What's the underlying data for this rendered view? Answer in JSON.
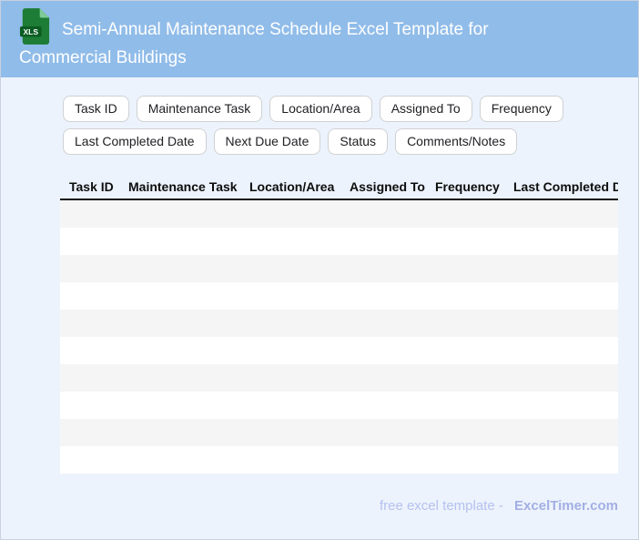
{
  "header": {
    "title": "Semi-Annual Maintenance Schedule Excel Template for Commercial Buildings",
    "file_icon_label": "XLS",
    "bg_color": "#90bce9"
  },
  "chips": [
    "Task ID",
    "Maintenance Task",
    "Location/Area",
    "Assigned To",
    "Frequency",
    "Last Completed Date",
    "Next Due Date",
    "Status",
    "Comments/Notes"
  ],
  "table": {
    "columns": [
      "Task ID",
      "Maintenance Task",
      "Location/Area",
      "Assigned To",
      "Frequency",
      "Last Completed Date"
    ],
    "empty_row_count": 10,
    "stripe_color": "#f5f5f5",
    "row_color": "#ffffff"
  },
  "footer": {
    "note": "free excel template -",
    "brand": "ExcelTimer.com"
  }
}
